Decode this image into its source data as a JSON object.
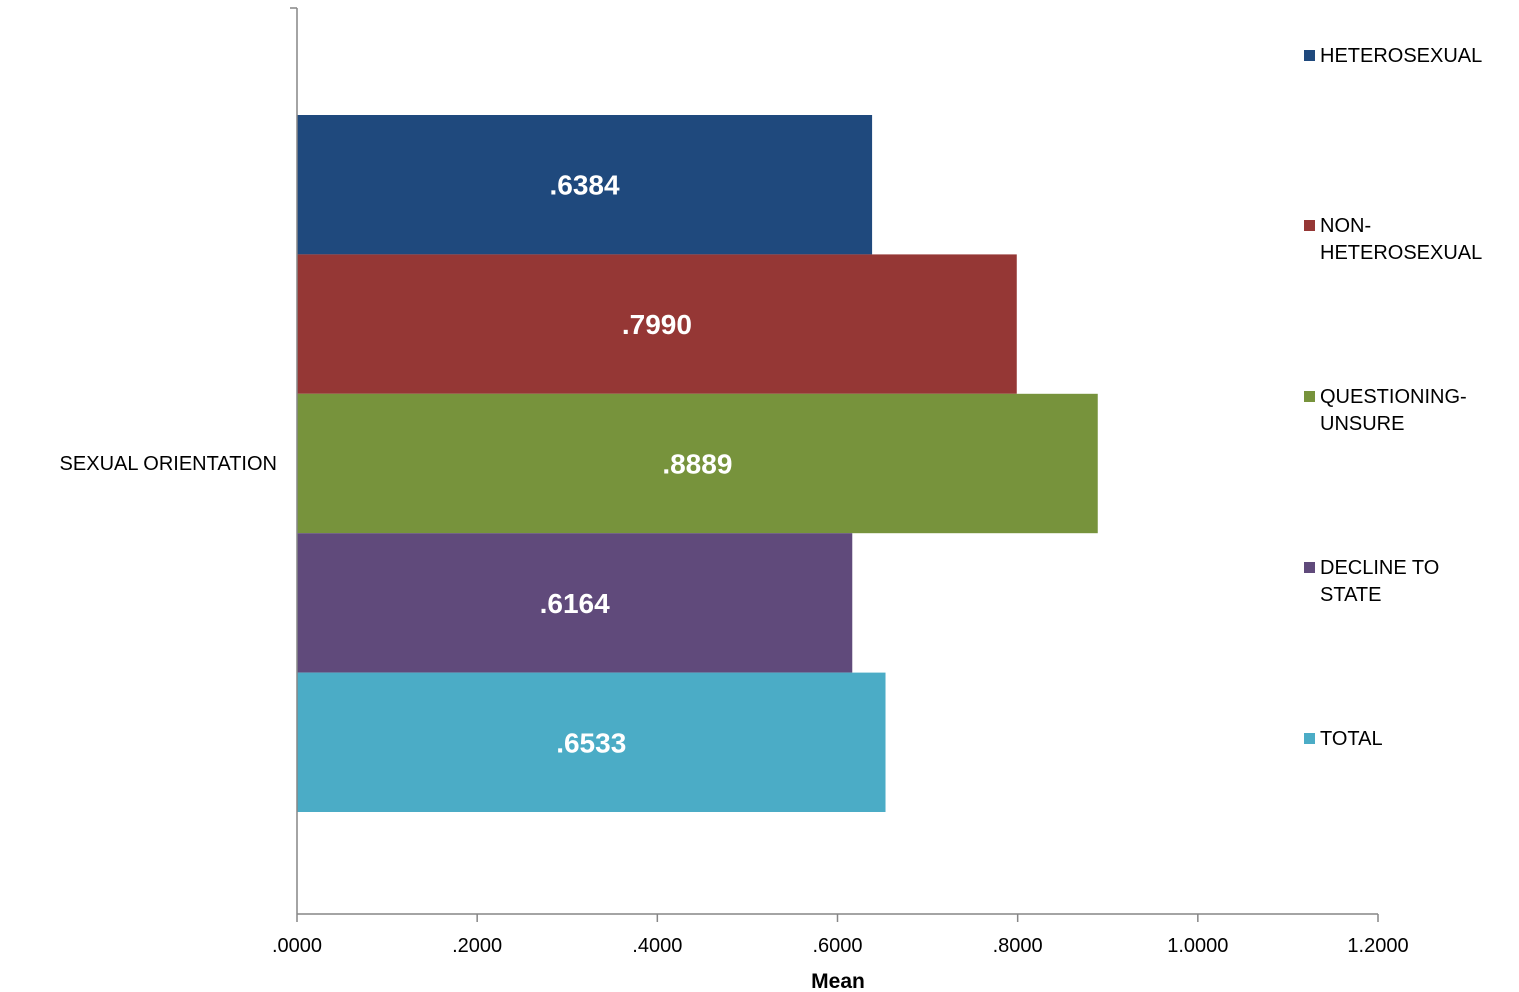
{
  "chart_data": {
    "type": "bar",
    "orientation": "horizontal",
    "categories": [
      "SEXUAL ORIENTATION"
    ],
    "series": [
      {
        "name": "HETEROSEXUAL",
        "values": [
          0.6384
        ],
        "label": ".6384",
        "color": "#1F497D"
      },
      {
        "name": "NON-HETEROSEXUAL",
        "values": [
          0.799
        ],
        "label": ".7990",
        "color": "#953735"
      },
      {
        "name": "QUESTIONING-UNSURE",
        "values": [
          0.8889
        ],
        "label": ".8889",
        "color": "#77933C"
      },
      {
        "name": "DECLINE TO STATE",
        "values": [
          0.6164
        ],
        "label": ".6164",
        "color": "#604A7B"
      },
      {
        "name": "TOTAL",
        "values": [
          0.6533
        ],
        "label": ".6533",
        "color": "#4BACC6"
      }
    ],
    "xlabel": "Mean",
    "ylabel": "",
    "xlim": [
      0,
      1.2
    ],
    "xticks": [
      ".0000",
      ".2000",
      ".4000",
      ".6000",
      ".8000",
      "1.0000",
      "1.2000"
    ],
    "grid": false,
    "legend_position": "right"
  }
}
